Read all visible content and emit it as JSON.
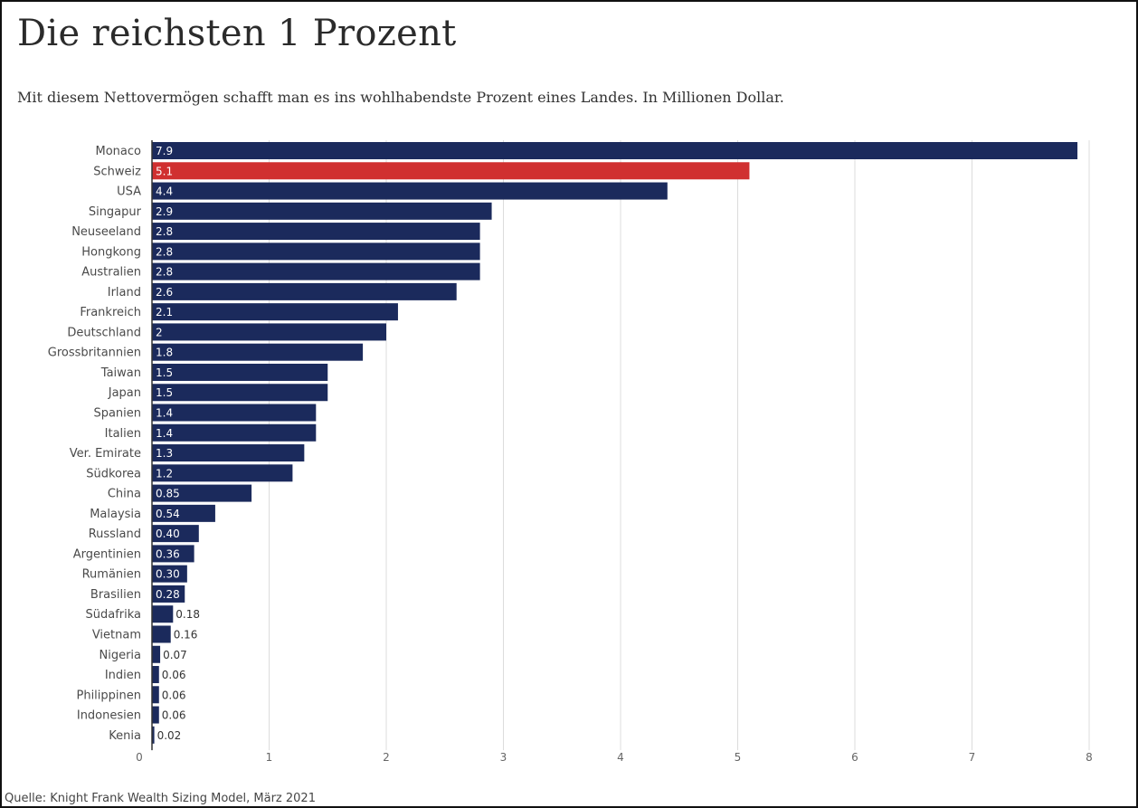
{
  "title": "Die reichsten 1 Prozent",
  "subtitle": "Mit diesem Nettovermögen schafft man es ins wohlhabendste Prozent eines Landes. In Millionen Dollar.",
  "source": "Quelle: Knight Frank Wealth Sizing Model, März 2021",
  "colors": {
    "bar": "#1b2a5c",
    "highlight": "#d03030",
    "grid": "#dcdcdc",
    "axis": "#333333"
  },
  "chart_data": {
    "type": "bar",
    "orientation": "horizontal",
    "title": "Die reichsten 1 Prozent",
    "subtitle": "Mit diesem Nettovermögen schafft man es ins wohlhabendste Prozent eines Landes. In Millionen Dollar.",
    "xlim": [
      0,
      8
    ],
    "xticks": [
      "0",
      "1",
      "2",
      "3",
      "4",
      "5",
      "6",
      "7",
      "8"
    ],
    "grid": true,
    "highlight_category": "Schweiz",
    "categories": [
      "Monaco",
      "Schweiz",
      "USA",
      "Singapur",
      "Neuseeland",
      "Hongkong",
      "Australien",
      "Irland",
      "Frankreich",
      "Deutschland",
      "Grossbritannien",
      "Taiwan",
      "Japan",
      "Spanien",
      "Italien",
      "Ver. Emirate",
      "Südkorea",
      "China",
      "Malaysia",
      "Russland",
      "Argentinien",
      "Rumänien",
      "Brasilien",
      "Südafrika",
      "Vietnam",
      "Nigeria",
      "Indien",
      "Philippinen",
      "Indonesien",
      "Kenia"
    ],
    "values": [
      7.9,
      5.1,
      4.4,
      2.9,
      2.8,
      2.8,
      2.8,
      2.6,
      2.1,
      2,
      1.8,
      1.5,
      1.5,
      1.4,
      1.4,
      1.3,
      1.2,
      0.85,
      0.54,
      0.4,
      0.36,
      0.3,
      0.28,
      0.18,
      0.16,
      0.07,
      0.06,
      0.06,
      0.06,
      0.02
    ],
    "labels": [
      "7.9",
      "5.1",
      "4.4",
      "2.9",
      "2.8",
      "2.8",
      "2.8",
      "2.6",
      "2.1",
      "2",
      "1.8",
      "1.5",
      "1.5",
      "1.4",
      "1.4",
      "1.3",
      "1.2",
      "0.85",
      "0.54",
      "0.40",
      "0.36",
      "0.30",
      "0.28",
      "0.18",
      "0.16",
      "0.07",
      "0.06",
      "0.06",
      "0.06",
      "0.02"
    ]
  }
}
